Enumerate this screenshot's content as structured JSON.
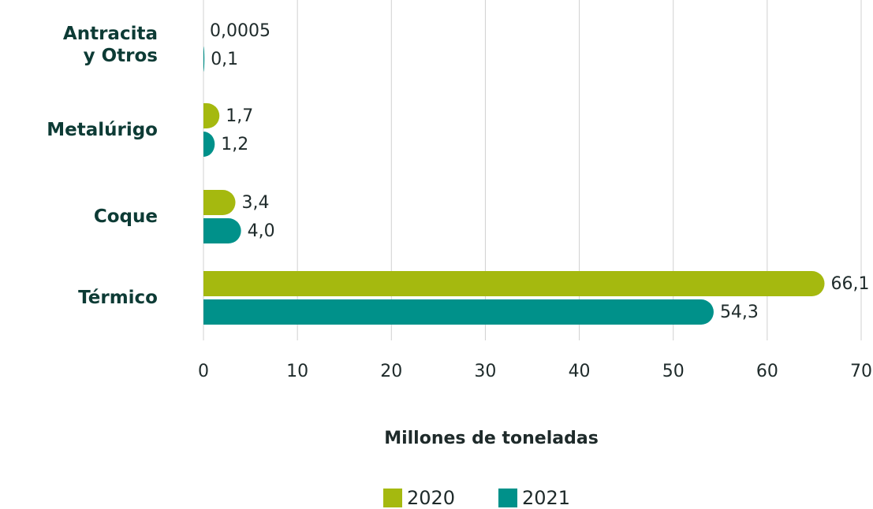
{
  "chart_data": {
    "type": "bar",
    "orientation": "horizontal",
    "categories": [
      "Antracita\ny Otros",
      "Metalúrigo",
      "Coque",
      "Térmico"
    ],
    "series": [
      {
        "name": "2020",
        "color": "#a5b90f",
        "values": [
          0.0005,
          1.7,
          3.4,
          66.1
        ],
        "value_labels": [
          "0,0005",
          "1,7",
          "3,4",
          "66,1"
        ]
      },
      {
        "name": "2021",
        "color": "#00918a",
        "values": [
          0.1,
          1.2,
          4.0,
          54.3
        ],
        "value_labels": [
          "0,1",
          "1,2",
          "4,0",
          "54,3"
        ]
      }
    ],
    "xlim": [
      0,
      70
    ],
    "xticks": [
      0,
      10,
      20,
      30,
      40,
      50,
      60,
      70
    ],
    "grid": true,
    "x_axis_label": "Millones de toneladas",
    "legend": "bottom"
  }
}
